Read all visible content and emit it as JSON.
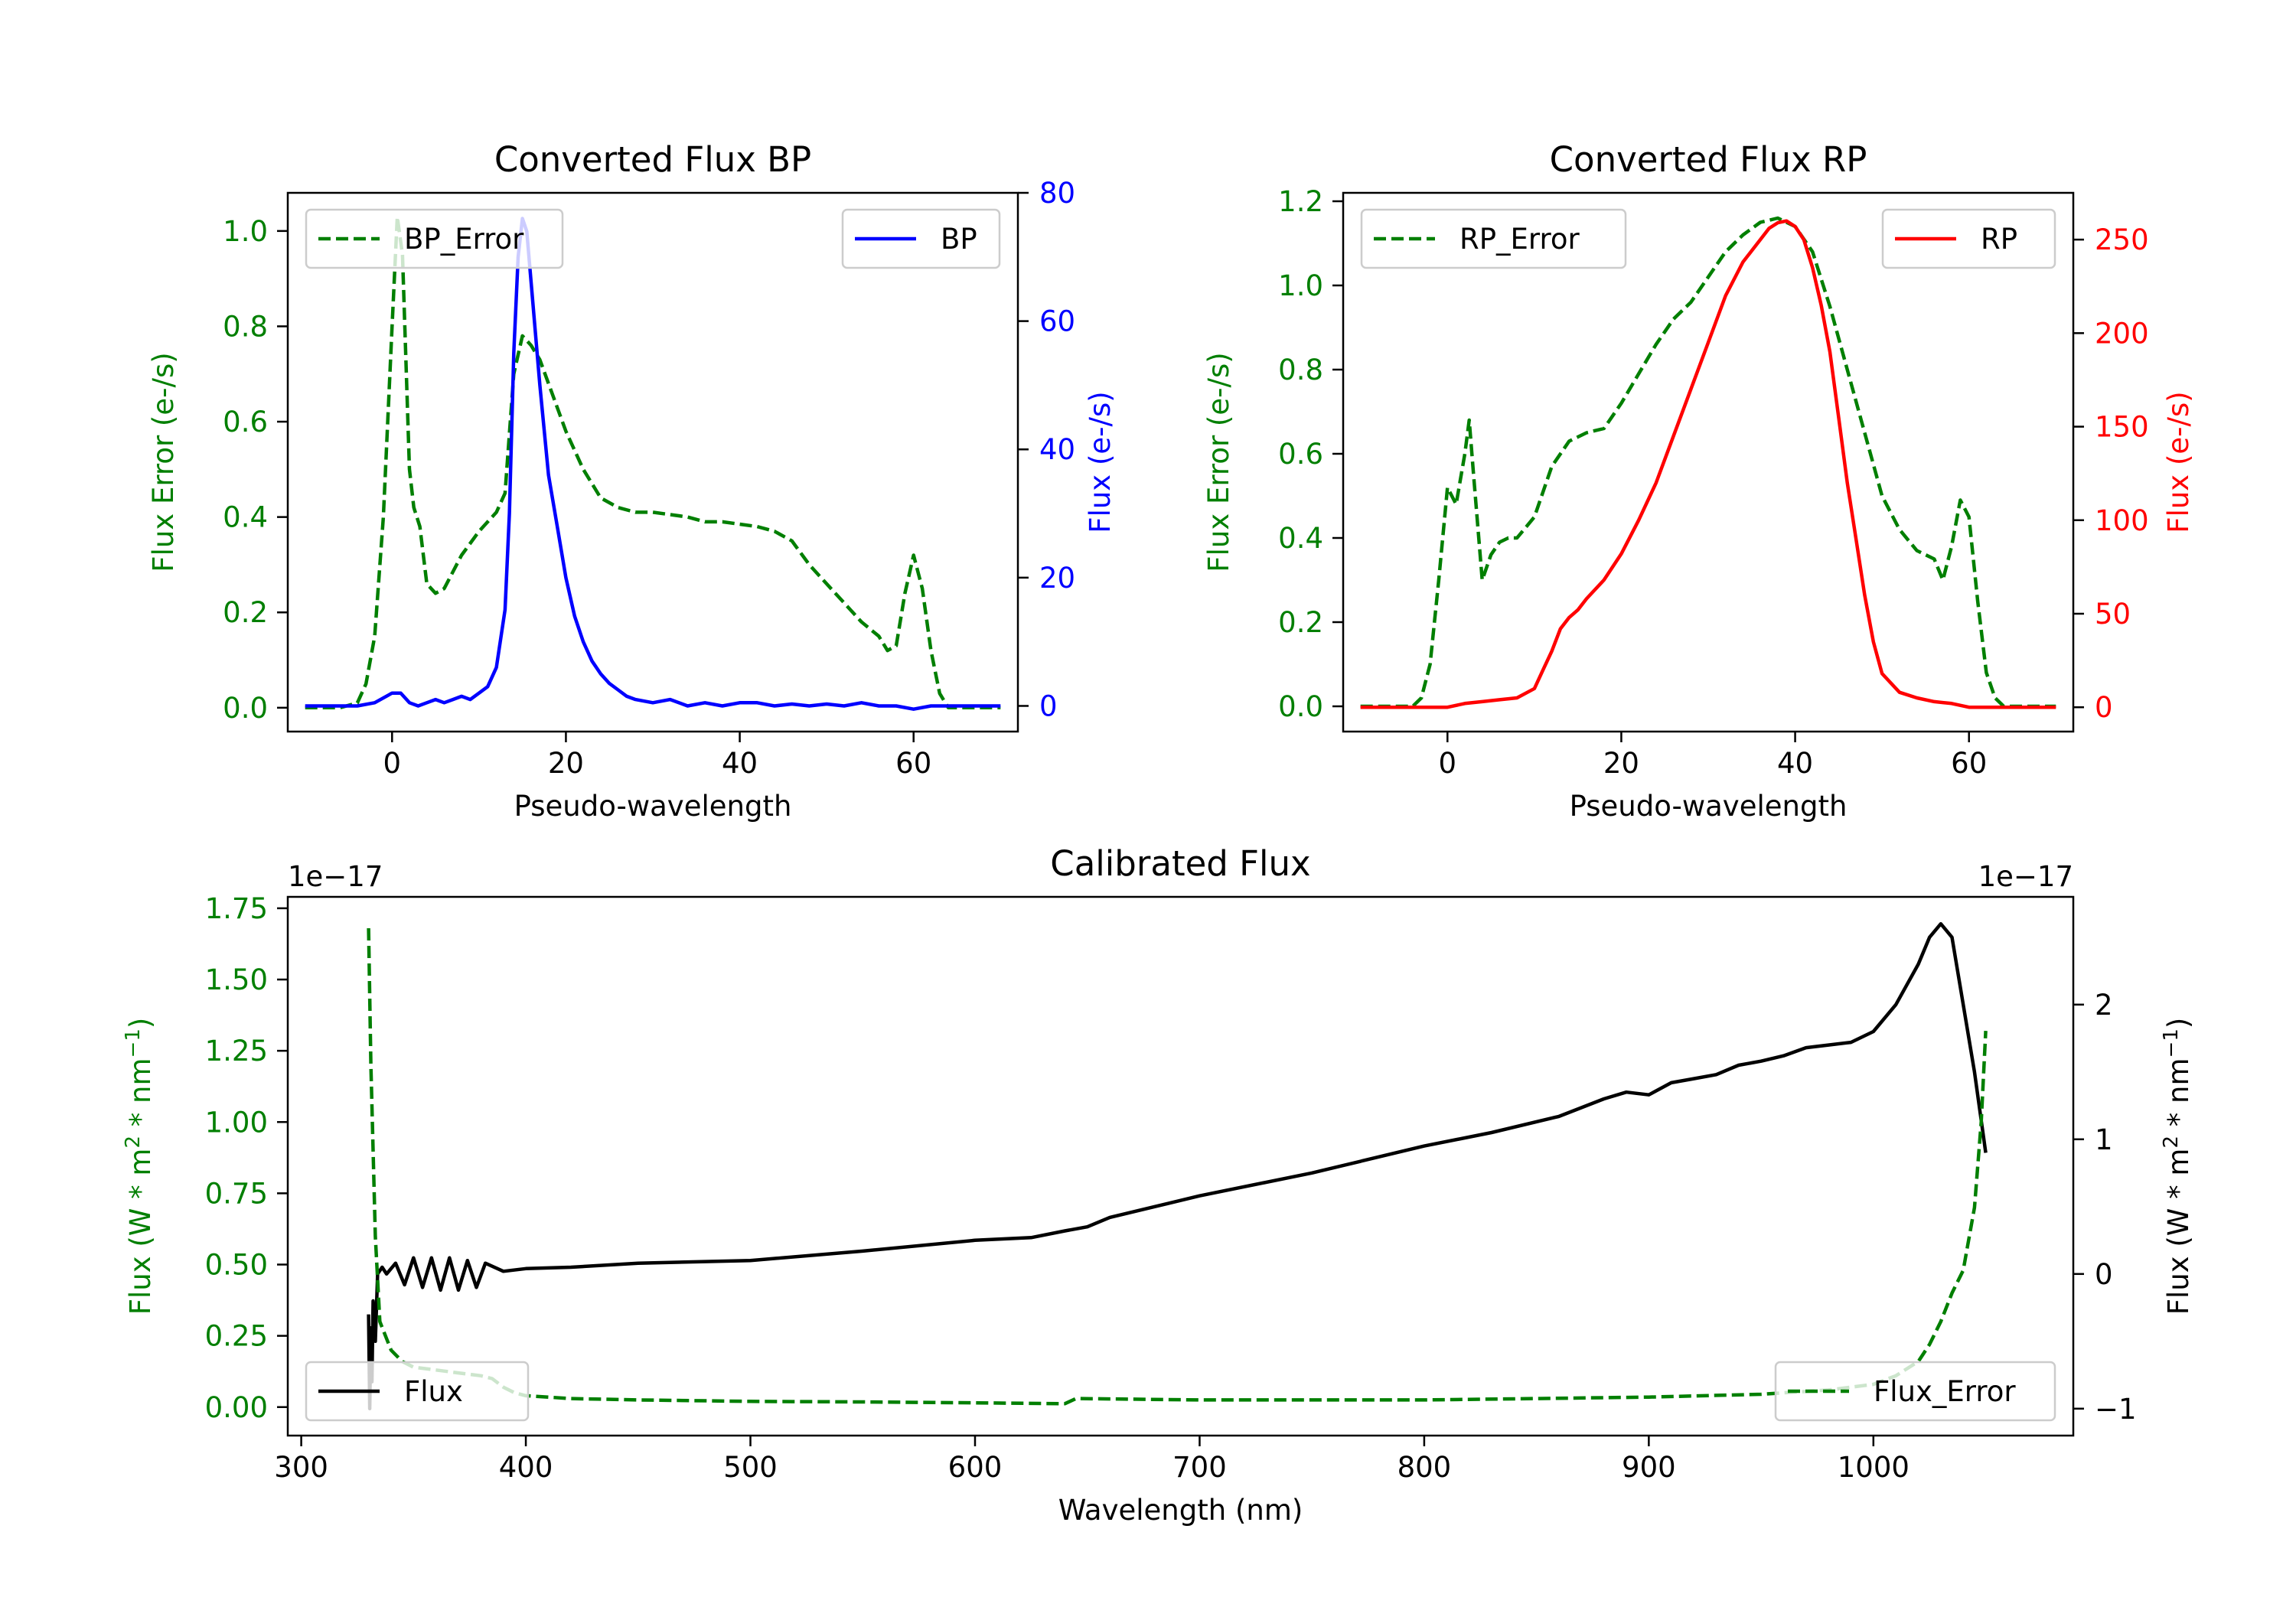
{
  "colors": {
    "error": "#007f00",
    "bp": "#0000ff",
    "rp": "#ff0000",
    "flux": "#000000",
    "axes": "#000000",
    "legend_border": "#cccccc"
  },
  "chart_data": [
    {
      "id": "bp",
      "type": "line",
      "title": "Converted Flux BP",
      "xlabel": "Pseudo-wavelength",
      "ylabel_left": "Flux Error (e-/s)",
      "ylabel_right": "Flux (e-/s)",
      "xlim": [
        -12,
        72
      ],
      "ylim_left": [
        -0.05,
        1.08
      ],
      "ylim_right": [
        -4,
        80
      ],
      "xticks": [
        0,
        20,
        40,
        60
      ],
      "xtick_labels": [
        "0",
        "20",
        "40",
        "60"
      ],
      "yticks_left": [
        0,
        0.2,
        0.4,
        0.6,
        0.8,
        1.0
      ],
      "ytick_labels_left": [
        "0.0",
        "0.2",
        "0.4",
        "0.6",
        "0.8",
        "1.0"
      ],
      "yticks_right": [
        0,
        20,
        40,
        60,
        80
      ],
      "ytick_labels_right": [
        "0",
        "20",
        "40",
        "60",
        "80"
      ],
      "legend_left": "BP_Error",
      "legend_right": "BP",
      "series": [
        {
          "name": "BP_Error",
          "axis": "left",
          "style": "dashed",
          "color_key": "error",
          "x": [
            -10,
            -6,
            -4,
            -3,
            -2,
            -1,
            0,
            0.6,
            1.2,
            2,
            2.5,
            3.2,
            4,
            5,
            6,
            8,
            10,
            12,
            13,
            14,
            15,
            16,
            17,
            18,
            20,
            22,
            24,
            26,
            28,
            30,
            32,
            34,
            36,
            38,
            40,
            42,
            44,
            46,
            48,
            50,
            52,
            54,
            56,
            57,
            58,
            59,
            60,
            61,
            62,
            63,
            64,
            66,
            70
          ],
          "y": [
            0,
            0,
            0.01,
            0.05,
            0.15,
            0.4,
            0.8,
            1.03,
            0.95,
            0.5,
            0.42,
            0.38,
            0.26,
            0.24,
            0.25,
            0.32,
            0.37,
            0.41,
            0.45,
            0.7,
            0.78,
            0.76,
            0.73,
            0.68,
            0.58,
            0.5,
            0.44,
            0.42,
            0.41,
            0.41,
            0.405,
            0.4,
            0.39,
            0.39,
            0.385,
            0.38,
            0.37,
            0.35,
            0.3,
            0.26,
            0.22,
            0.18,
            0.15,
            0.12,
            0.13,
            0.24,
            0.32,
            0.25,
            0.12,
            0.03,
            0,
            0,
            0
          ]
        },
        {
          "name": "BP",
          "axis": "right",
          "style": "solid",
          "color_key": "bp",
          "x": [
            -10,
            -4,
            -2,
            0,
            1,
            2,
            3,
            4,
            5,
            6,
            7,
            8,
            9,
            10,
            11,
            12,
            13,
            13.5,
            14,
            14.5,
            15,
            15.5,
            16,
            17,
            18,
            19,
            20,
            21,
            22,
            23,
            24,
            25,
            26,
            27,
            28,
            30,
            32,
            34,
            36,
            38,
            40,
            42,
            44,
            46,
            48,
            50,
            52,
            54,
            56,
            58,
            60,
            62,
            64,
            70
          ],
          "y": [
            0,
            0,
            0.5,
            2,
            2,
            0.5,
            0,
            0.5,
            1,
            0.5,
            1,
            1.5,
            1,
            2,
            3,
            6,
            15,
            30,
            55,
            70,
            76,
            74,
            66,
            50,
            36,
            28,
            20,
            14,
            10,
            7,
            5,
            3.5,
            2.5,
            1.5,
            1,
            0.5,
            1,
            0,
            0.5,
            0,
            0.5,
            0.5,
            0,
            0.3,
            0,
            0.3,
            0,
            0.5,
            0,
            0,
            -0.5,
            0,
            0,
            0
          ]
        }
      ]
    },
    {
      "id": "rp",
      "type": "line",
      "title": "Converted Flux RP",
      "xlabel": "Pseudo-wavelength",
      "ylabel_left": "Flux Error (e-/s)",
      "ylabel_right": "Flux (e-/s)",
      "xlim": [
        -12,
        72
      ],
      "ylim_left": [
        -0.06,
        1.22
      ],
      "ylim_right": [
        -13,
        275
      ],
      "xticks": [
        0,
        20,
        40,
        60
      ],
      "xtick_labels": [
        "0",
        "20",
        "40",
        "60"
      ],
      "yticks_left": [
        0,
        0.2,
        0.4,
        0.6,
        0.8,
        1.0,
        1.2
      ],
      "ytick_labels_left": [
        "0.0",
        "0.2",
        "0.4",
        "0.6",
        "0.8",
        "1.0",
        "1.2"
      ],
      "yticks_right": [
        0,
        50,
        100,
        150,
        200,
        250
      ],
      "ytick_labels_right": [
        "0",
        "50",
        "100",
        "150",
        "200",
        "250"
      ],
      "legend_left": "RP_Error",
      "legend_right": "RP",
      "series": [
        {
          "name": "RP_Error",
          "axis": "left",
          "style": "dashed",
          "color_key": "error",
          "x": [
            -10,
            -4,
            -3,
            -2,
            -1,
            0,
            1,
            2,
            2.5,
            3,
            4,
            5,
            6,
            7,
            8,
            10,
            12,
            14,
            16,
            18,
            20,
            22,
            24,
            26,
            28,
            30,
            32,
            34,
            36,
            38,
            40,
            42,
            44,
            46,
            48,
            50,
            52,
            54,
            56,
            57,
            58,
            59,
            60,
            61,
            62,
            63,
            64,
            66,
            70
          ],
          "y": [
            0,
            0,
            0.02,
            0.1,
            0.3,
            0.52,
            0.48,
            0.6,
            0.68,
            0.55,
            0.3,
            0.36,
            0.39,
            0.4,
            0.4,
            0.45,
            0.57,
            0.63,
            0.65,
            0.66,
            0.72,
            0.79,
            0.86,
            0.92,
            0.96,
            1.02,
            1.08,
            1.12,
            1.15,
            1.16,
            1.14,
            1.08,
            0.95,
            0.8,
            0.65,
            0.5,
            0.42,
            0.37,
            0.35,
            0.3,
            0.38,
            0.49,
            0.45,
            0.25,
            0.08,
            0.02,
            0,
            0,
            0
          ]
        },
        {
          "name": "RP",
          "axis": "right",
          "style": "solid",
          "color_key": "rp",
          "x": [
            -10,
            -4,
            0,
            2,
            4,
            6,
            8,
            10,
            11,
            12,
            13,
            14,
            15,
            16,
            18,
            20,
            22,
            24,
            26,
            28,
            30,
            32,
            34,
            36,
            37,
            38,
            39,
            40,
            41,
            42,
            43,
            44,
            45,
            46,
            47,
            48,
            49,
            50,
            52,
            54,
            56,
            58,
            60,
            62,
            64,
            70
          ],
          "y": [
            0,
            0,
            0,
            2,
            3,
            4,
            5,
            10,
            20,
            30,
            42,
            48,
            52,
            58,
            68,
            82,
            100,
            120,
            145,
            170,
            195,
            220,
            238,
            250,
            256,
            259,
            260,
            257,
            250,
            235,
            215,
            190,
            155,
            120,
            90,
            60,
            35,
            18,
            8,
            5,
            3,
            2,
            0,
            0,
            0,
            0
          ]
        }
      ]
    },
    {
      "id": "cal",
      "type": "line",
      "title": "Calibrated Flux",
      "xlabel": "Wavelength (nm)",
      "ylabel_left_prefix": "Flux (W * m",
      "ylabel_left_mid": " * nm",
      "ylabel_left_suffix": ")",
      "ylabel_right_prefix": "Flux (W * m",
      "ylabel_right_mid": " * nm",
      "ylabel_right_suffix": ")",
      "ylabel_sup_a": "2",
      "ylabel_sup_b": "−1",
      "offset_left": "1e−17",
      "offset_right": "1e−17",
      "xlim": [
        294,
        1089
      ],
      "ylim_left": [
        -0.1,
        1.79
      ],
      "ylim_right": [
        -1.2,
        2.8
      ],
      "xticks": [
        300,
        400,
        500,
        600,
        700,
        800,
        900,
        1000
      ],
      "xtick_labels": [
        "300",
        "400",
        "500",
        "600",
        "700",
        "800",
        "900",
        "1000"
      ],
      "yticks_left": [
        0,
        0.25,
        0.5,
        0.75,
        1.0,
        1.25,
        1.5,
        1.75
      ],
      "ytick_labels_left": [
        "0.00",
        "0.25",
        "0.50",
        "0.75",
        "1.00",
        "1.25",
        "1.50",
        "1.75"
      ],
      "yticks_right": [
        -1,
        0,
        1,
        2
      ],
      "ytick_labels_right": [
        "−1",
        "0",
        "1",
        "2"
      ],
      "legend_left": "Flux",
      "legend_right": "Flux_Error",
      "series": [
        {
          "name": "Flux_Error",
          "axis": "left",
          "style": "dashed",
          "color_key": "error",
          "x": [
            330,
            331,
            333,
            335,
            340,
            345,
            350,
            360,
            370,
            380,
            385,
            390,
            395,
            400,
            420,
            450,
            500,
            550,
            600,
            640,
            645,
            700,
            800,
            850,
            900,
            950,
            980,
            1000,
            1010,
            1020,
            1025,
            1030,
            1035,
            1040,
            1045,
            1048,
            1050
          ],
          "y": [
            1.68,
            1.2,
            0.6,
            0.3,
            0.2,
            0.16,
            0.14,
            0.13,
            0.12,
            0.11,
            0.1,
            0.07,
            0.05,
            0.04,
            0.03,
            0.025,
            0.02,
            0.018,
            0.015,
            0.012,
            0.03,
            0.025,
            0.025,
            0.03,
            0.035,
            0.045,
            0.06,
            0.08,
            0.11,
            0.16,
            0.22,
            0.3,
            0.4,
            0.48,
            0.7,
            1.0,
            1.32
          ]
        },
        {
          "name": "Flux",
          "axis": "right",
          "style": "solid",
          "color_key": "flux",
          "x": [
            330,
            330.5,
            331,
            331.5,
            332,
            333,
            334,
            336,
            338,
            342,
            346,
            350,
            354,
            358,
            362,
            366,
            370,
            374,
            378,
            382,
            390,
            400,
            420,
            450,
            500,
            550,
            600,
            625,
            640,
            650,
            660,
            680,
            700,
            750,
            800,
            830,
            860,
            880,
            890,
            900,
            910,
            920,
            930,
            940,
            950,
            960,
            970,
            980,
            990,
            1000,
            1010,
            1020,
            1025,
            1030,
            1035,
            1040,
            1045,
            1050
          ],
          "y": [
            -0.3,
            -1.0,
            -0.4,
            -0.8,
            -0.2,
            -0.5,
            0.0,
            0.05,
            0.0,
            0.08,
            -0.08,
            0.12,
            -0.1,
            0.12,
            -0.12,
            0.12,
            -0.12,
            0.1,
            -0.1,
            0.08,
            0.02,
            0.04,
            0.05,
            0.08,
            0.1,
            0.17,
            0.25,
            0.27,
            0.32,
            0.35,
            0.42,
            0.5,
            0.58,
            0.75,
            0.95,
            1.05,
            1.17,
            1.3,
            1.35,
            1.33,
            1.42,
            1.45,
            1.48,
            1.55,
            1.58,
            1.62,
            1.68,
            1.7,
            1.72,
            1.8,
            2.0,
            2.3,
            2.5,
            2.6,
            2.5,
            2.0,
            1.5,
            0.9
          ]
        }
      ]
    }
  ]
}
